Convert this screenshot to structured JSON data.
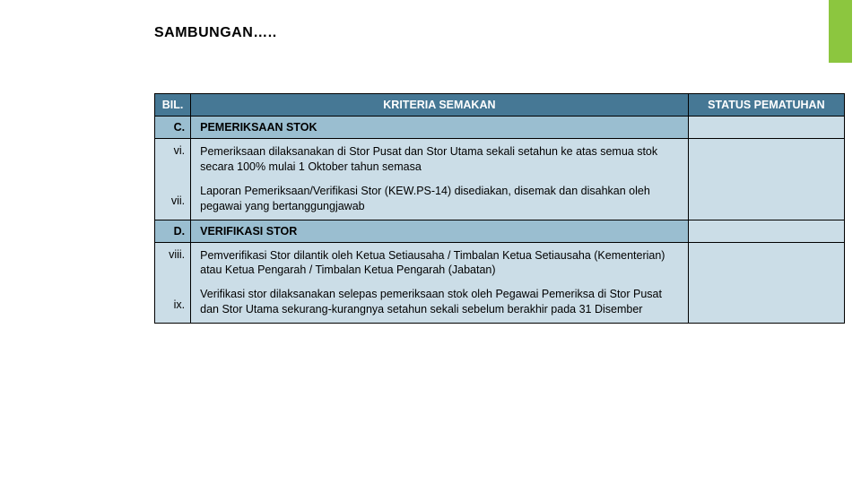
{
  "accent_color": "#8cc63f",
  "title": "SAMBUNGAN…..",
  "header_color": "#467895",
  "header_text_color": "#ffffff",
  "section_row_color": "#9abed0",
  "body_row_color": "#cbddE7",
  "status_col_color": "#cbddE7",
  "columns": {
    "bil": "BIL.",
    "kriteria": "KRITERIA SEMAKAN",
    "status": "STATUS PEMATUHAN"
  },
  "rows": [
    {
      "type": "section",
      "bil": "C.",
      "text": "PEMERIKSAAN STOK"
    },
    {
      "type": "body",
      "bil_lines": [
        "vi.",
        "",
        "vii."
      ],
      "paras": [
        "Pemeriksaan dilaksanakan di Stor Pusat dan Stor Utama sekali setahun ke atas semua stok secara 100% mulai 1 Oktober tahun semasa",
        "Laporan Pemeriksaan/Verifikasi Stor (KEW.PS-14) disediakan, disemak dan disahkan oleh pegawai yang bertanggungjawab"
      ]
    },
    {
      "type": "section",
      "bil": "D.",
      "text": "VERIFIKASI STOR"
    },
    {
      "type": "body",
      "bil_lines": [
        "viii.",
        "",
        "ix."
      ],
      "paras": [
        "Pemverifikasi Stor dilantik oleh Ketua Setiausaha / Timbalan Ketua Setiausaha (Kementerian) atau Ketua Pengarah / Timbalan Ketua Pengarah (Jabatan)",
        "Verifikasi stor dilaksanakan selepas pemeriksaan stok oleh Pegawai Pemeriksa di Stor Pusat dan Stor Utama sekurang-kurangnya setahun sekali sebelum berakhir pada 31 Disember"
      ]
    }
  ]
}
